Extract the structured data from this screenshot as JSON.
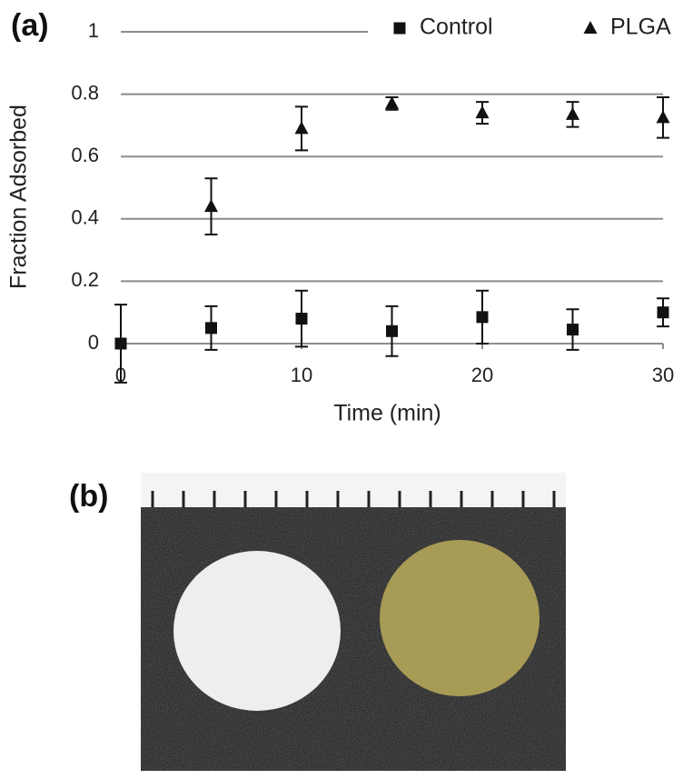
{
  "figure": {
    "panel_a": "(a)",
    "panel_b": "(b)"
  },
  "chart_data": {
    "type": "scatter",
    "xlabel": "Time (min)",
    "ylabel": "Fraction Adsorbed",
    "x": [
      0,
      5,
      10,
      15,
      20,
      25,
      30
    ],
    "xlim": [
      0,
      30
    ],
    "xticks": [
      0,
      10,
      20,
      30
    ],
    "ylim": [
      0,
      1
    ],
    "yticks": [
      0,
      0.2,
      0.4,
      0.6,
      0.8,
      1
    ],
    "grid": true,
    "legend": "top",
    "series": [
      {
        "name": "Control",
        "color": "#111111",
        "marker": "square",
        "values": [
          0,
          0.05,
          0.08,
          0.04,
          0.085,
          0.045,
          0.1
        ],
        "errors": [
          0.125,
          0.07,
          0.09,
          0.08,
          0.085,
          0.065,
          0.045
        ]
      },
      {
        "name": "PLGA",
        "color": "#111111",
        "marker": "triangle",
        "values": [
          null,
          0.44,
          0.69,
          0.77,
          0.74,
          0.735,
          0.725
        ],
        "errors": [
          null,
          0.09,
          0.07,
          0.02,
          0.035,
          0.04,
          0.065
        ]
      }
    ]
  }
}
